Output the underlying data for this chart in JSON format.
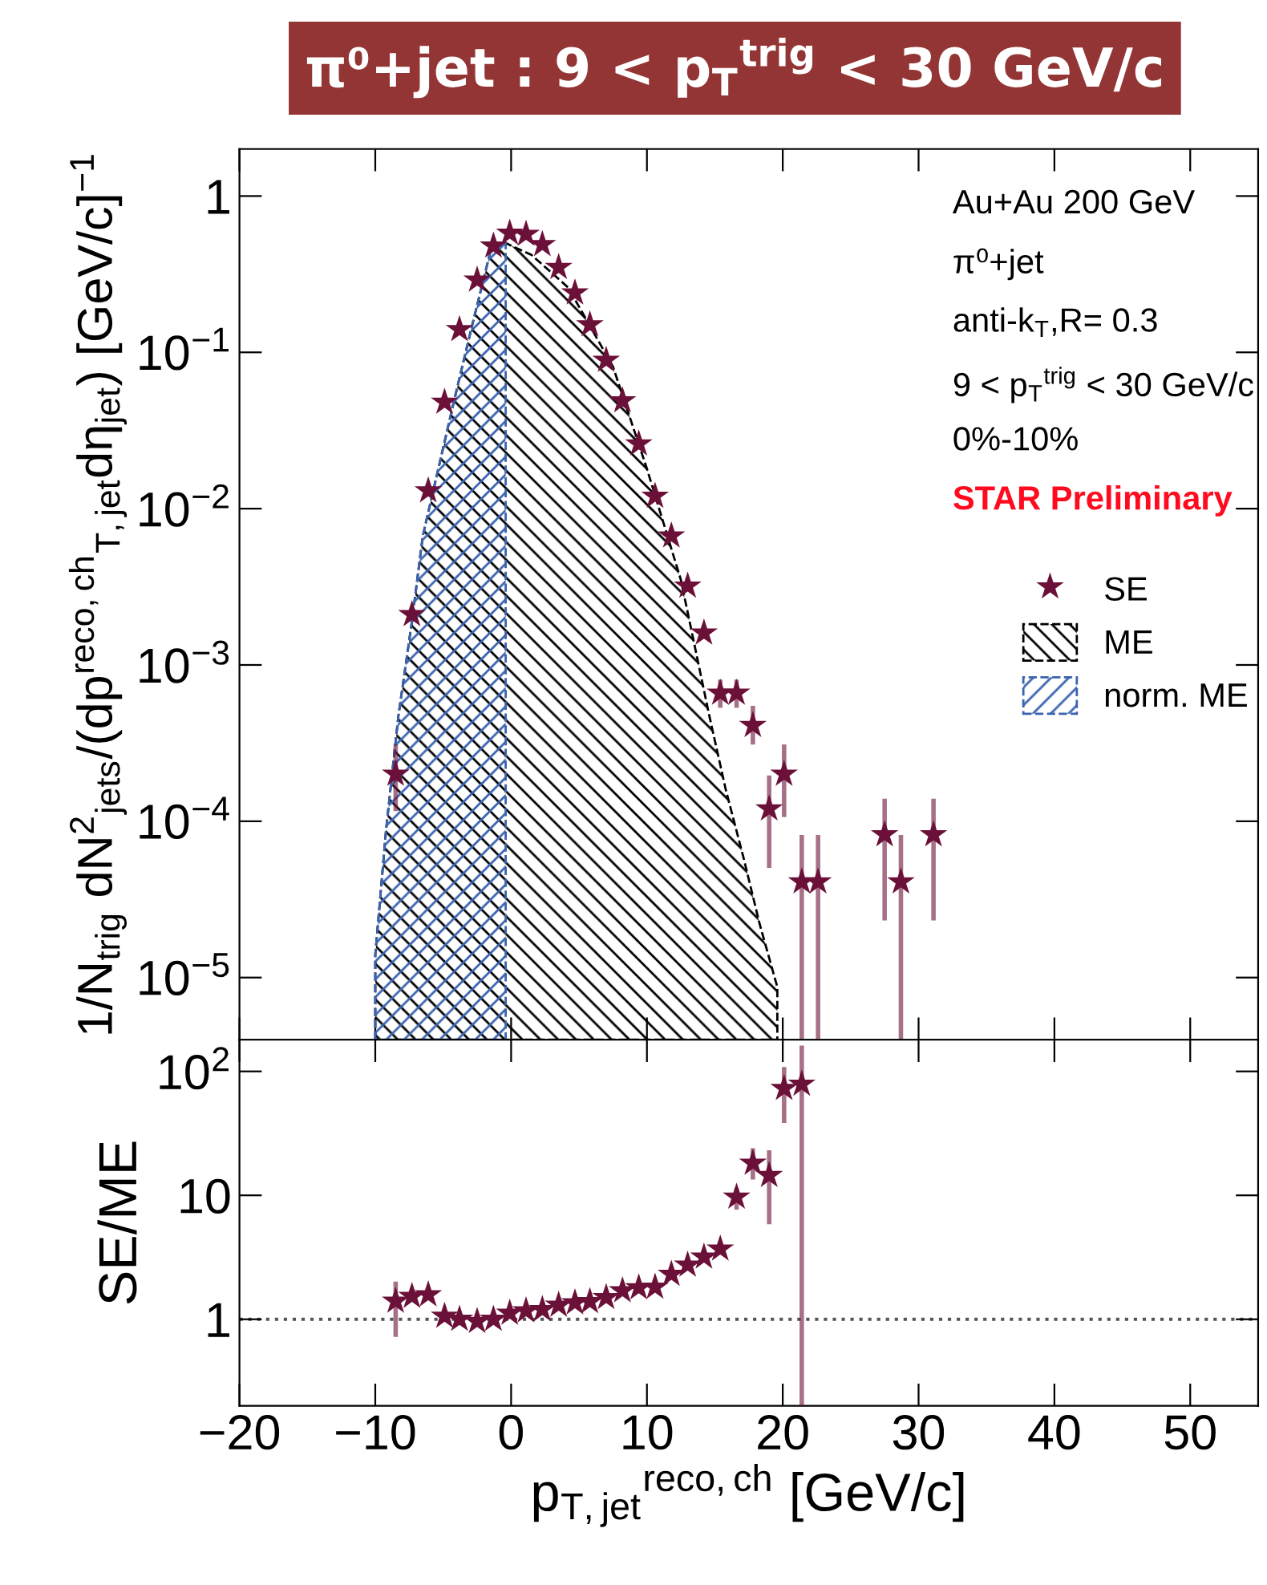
{
  "chart_data": [
    {
      "type": "scatter",
      "title": "π⁰+jet : 9 < p$_{T}$$^{trig}$ < 30 GeV/c",
      "ylabel": "1/N$_{trig}$ dN$^{2}$$_{jets}$/(dp$^{reco,ch}$$_{T,jet}$dη$_{jet}$) [GeV/c]$^{−1}$",
      "annotations": [
        "Au+Au 200 GeV",
        "π⁰+jet",
        "anti-k$_{T}$,R= 0.3",
        "9 < p$_{T}$$^{trig}$ < 30 GeV/c",
        "0%-10%",
        "STAR Preliminary"
      ],
      "log": "y",
      "xlim": [
        -20,
        55
      ],
      "ylim": [
        4e-06,
        2
      ],
      "xticks": [
        -20,
        -10,
        0,
        10,
        20,
        30,
        40,
        50
      ],
      "yticks": [
        {
          "value": 1e-05,
          "label": "10$^{−5}$"
        },
        {
          "value": 0.0001,
          "label": "10$^{−4}$"
        },
        {
          "value": 0.001,
          "label": "10$^{−3}$"
        },
        {
          "value": 0.01,
          "label": "10$^{−2}$"
        },
        {
          "value": 0.1,
          "label": "10$^{−1}$"
        },
        1
      ],
      "tick_labels": "y",
      "legend": "right",
      "grid": false,
      "series": [
        {
          "name": "SE",
          "marker": "star",
          "color": "#6b1038",
          "x": [
            -8.5,
            -7.3,
            -6.1,
            -4.9,
            -3.8,
            -2.5,
            -1.3,
            -0.1,
            1.1,
            2.3,
            3.5,
            4.7,
            5.8,
            7.0,
            8.2,
            9.4,
            10.6,
            11.8,
            13.0,
            14.2,
            15.4,
            16.6,
            17.8,
            19.0,
            20.1,
            21.4,
            22.6,
            27.5,
            28.7,
            31.1
          ],
          "values": [
            0.0002,
            0.0021,
            0.013,
            0.048,
            0.14,
            0.29,
            0.48,
            0.58,
            0.57,
            0.49,
            0.35,
            0.24,
            0.15,
            0.089,
            0.049,
            0.026,
            0.012,
            0.0067,
            0.0032,
            0.0016,
            0.00066,
            0.00066,
            0.00041,
            0.00012,
            0.0002,
            4.1e-05,
            4.1e-05,
            8.2e-05,
            4.1e-05,
            8.2e-05
          ],
          "errors": [
            [
              0.00012,
              0.0003
            ],
            null,
            null,
            null,
            null,
            null,
            null,
            null,
            null,
            null,
            null,
            null,
            null,
            null,
            null,
            null,
            null,
            null,
            null,
            null,
            [
              0.00055,
              0.00078
            ],
            [
              0.00055,
              0.00078
            ],
            [
              0.00032,
              0.00053
            ],
            [
              5.2e-05,
              0.00019
            ],
            [
              0.00011,
              0.0003
            ],
            [
              4e-06,
              7.9e-05
            ],
            [
              4e-06,
              7.9e-05
            ],
            [
              2.4e-05,
              0.000135
            ],
            [
              4e-06,
              7.9e-05
            ],
            [
              2.4e-05,
              0.000135
            ]
          ]
        },
        {
          "name": "ME",
          "type": "area",
          "color": "#000000",
          "line_style": "dashed",
          "x": [
            -10,
            -9.2,
            -8.3,
            -7.3,
            -6.5,
            -4.2,
            -2.9,
            -1.5,
            -0.4,
            1.5,
            4.2,
            7.5,
            10,
            12.5,
            14.6,
            15.8,
            17.1,
            18.3,
            19.6
          ],
          "values": [
            1.4e-05,
            8.9e-05,
            0.00047,
            0.0019,
            0.0067,
            0.049,
            0.145,
            0.45,
            0.5,
            0.42,
            0.26,
            0.081,
            0.018,
            0.0035,
            0.00047,
            0.00016,
            5.9e-05,
            2.2e-05,
            8.7e-06
          ]
        },
        {
          "name": "norm. ME",
          "type": "area",
          "color": "#3a63b0",
          "line_style": "dashed",
          "x": [
            -10,
            -9.2,
            -8.3,
            -7.3,
            -6.5,
            -4.2,
            -2.9,
            -1.5,
            -0.4
          ],
          "values": [
            1.4e-05,
            8.9e-05,
            0.00047,
            0.0019,
            0.0067,
            0.049,
            0.145,
            0.45,
            0.5
          ]
        }
      ]
    },
    {
      "type": "scatter",
      "xlabel": "p$_{T,jet}$$^{reco,ch}$ [GeV/c]",
      "ylabel": "SE/ME",
      "log": "y",
      "xlim": [
        -20,
        55
      ],
      "ylim": [
        0.2,
        180
      ],
      "xticks": [
        {
          "value": -20,
          "label": "−20"
        },
        {
          "value": -10,
          "label": "−10"
        },
        0,
        10,
        20,
        30,
        40,
        50
      ],
      "yticks": [
        1,
        10,
        {
          "value": 100,
          "label": "10$^{2}$"
        }
      ],
      "grid": false,
      "ref_lines": [
        {
          "axis": "y",
          "value": 1,
          "color": "#555555",
          "line_style": "dotted"
        }
      ],
      "series": [
        {
          "marker": "star",
          "color": "#6b1038",
          "x": [
            -8.5,
            -7.3,
            -6.1,
            -4.9,
            -3.8,
            -2.5,
            -1.3,
            -0.1,
            1.1,
            2.3,
            3.5,
            4.7,
            5.8,
            7.0,
            8.2,
            9.4,
            10.6,
            11.8,
            13.0,
            14.2,
            15.4,
            16.6,
            17.8,
            19.0,
            20.1,
            21.4
          ],
          "values": [
            1.4,
            1.53,
            1.58,
            1.06,
            1.0,
            0.96,
            1.0,
            1.12,
            1.17,
            1.2,
            1.3,
            1.36,
            1.39,
            1.5,
            1.7,
            1.8,
            1.82,
            2.31,
            2.74,
            3.18,
            3.69,
            9.7,
            18.2,
            14.5,
            73,
            79
          ],
          "errors": [
            [
              0.75,
              1.93
            ],
            null,
            null,
            null,
            null,
            null,
            null,
            null,
            null,
            null,
            null,
            null,
            null,
            null,
            null,
            null,
            null,
            null,
            null,
            null,
            null,
            [
              8.0,
              11.0
            ],
            [
              14.0,
              23.0
            ],
            [
              6.1,
              22.2
            ],
            [
              40,
              104
            ],
            [
              0.2,
              155
            ]
          ]
        }
      ]
    }
  ]
}
